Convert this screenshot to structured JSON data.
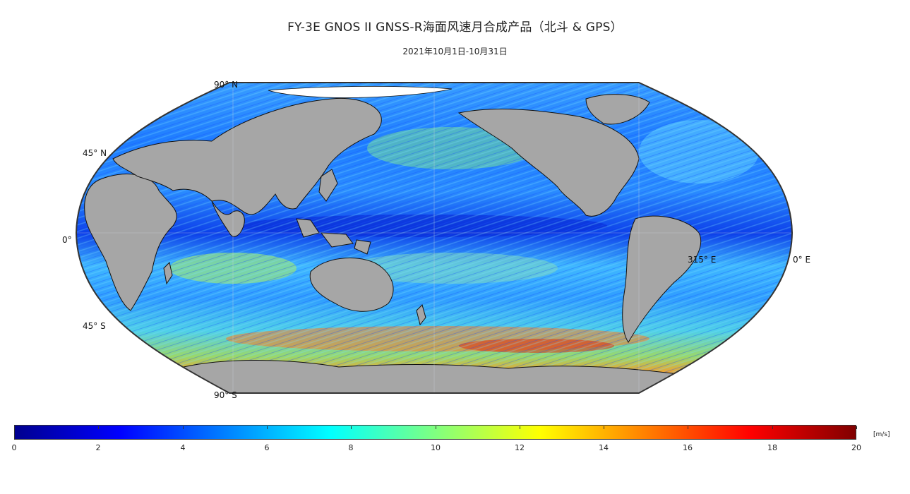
{
  "title": "FY-3E GNOS II GNSS-R海面风速月合成产品（北斗 & GPS）",
  "subtitle": "2021年10月1日-10月31日",
  "map": {
    "projection": "Robinson",
    "land_color": "#a6a6a6",
    "ice_color": "#ffffff",
    "graticule_labels": {
      "lat_90n": "90° N",
      "lat_45n": "45° N",
      "lat_0": "0°",
      "lat_45s": "45° S",
      "lat_90s": "90° S",
      "lon_315e": "315° E",
      "lon_0e": "0° E"
    }
  },
  "colorbar": {
    "unit": "[m/s]",
    "min": 0,
    "max": 20,
    "ticks": [
      "0",
      "2",
      "4",
      "6",
      "8",
      "10",
      "12",
      "14",
      "16",
      "18",
      "20"
    ],
    "colormap": "jet",
    "colors": [
      "#00008f",
      "#0000ff",
      "#0080ff",
      "#00ffff",
      "#80ff80",
      "#ffff00",
      "#ff8000",
      "#ff0000",
      "#800000"
    ]
  }
}
